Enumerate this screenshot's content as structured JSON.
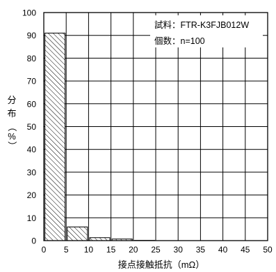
{
  "chart_data": {
    "type": "bar",
    "title": "",
    "xlabel": "接点接触抵抗（mΩ）",
    "ylabel": [
      "分",
      "布",
      "（",
      "%",
      "）"
    ],
    "xlim": [
      0,
      50
    ],
    "ylim": [
      0,
      100
    ],
    "x_ticks": [
      0,
      5,
      10,
      15,
      20,
      25,
      30,
      35,
      40,
      45,
      50
    ],
    "y_ticks": [
      0,
      10,
      20,
      30,
      40,
      50,
      60,
      70,
      80,
      90,
      100
    ],
    "grid": true,
    "bar_pattern": "diagonal-hatch",
    "bins": [
      {
        "from": 0,
        "to": 5,
        "value": 91
      },
      {
        "from": 5,
        "to": 10,
        "value": 6
      },
      {
        "from": 10,
        "to": 15,
        "value": 1.3
      },
      {
        "from": 15,
        "to": 20,
        "value": 0.7
      },
      {
        "from": 20,
        "to": 25,
        "value": 0.1
      }
    ],
    "legend": {
      "placement": "top-right",
      "lines": [
        "試料：FTR-K3FJB012W",
        "個数：n=100"
      ]
    }
  }
}
